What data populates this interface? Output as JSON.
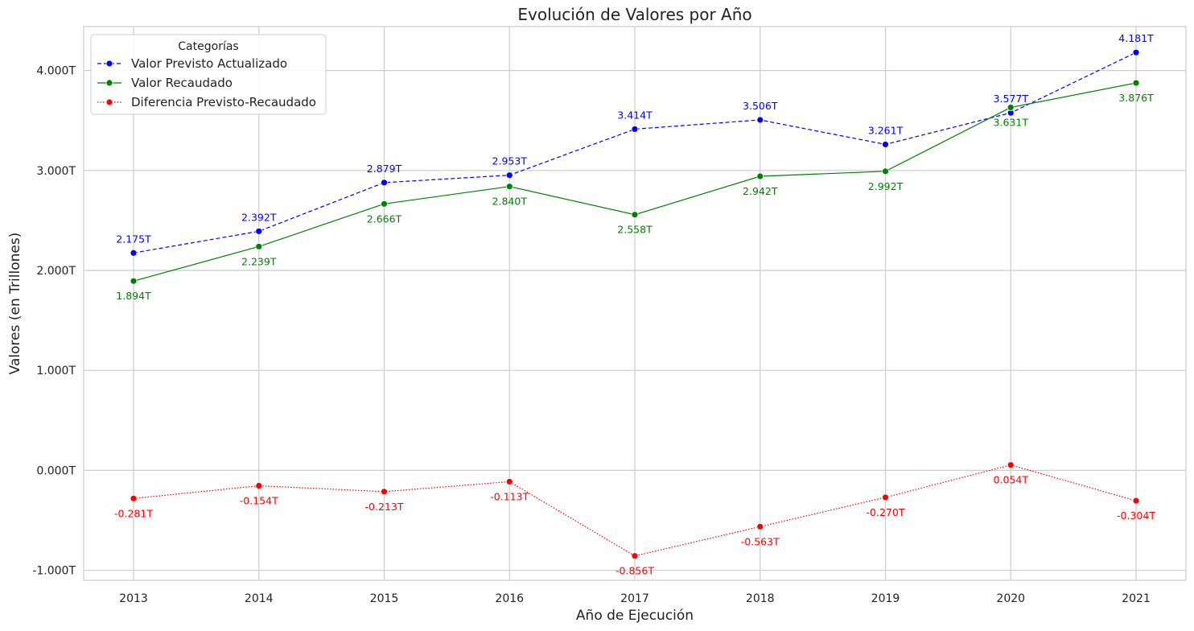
{
  "chart_data": {
    "type": "line",
    "title": "Evolución de Valores por Año",
    "xlabel": "Año de Ejecución",
    "ylabel": "Valores (en Trillones)",
    "categories": [
      "2013",
      "2014",
      "2015",
      "2016",
      "2017",
      "2018",
      "2019",
      "2020",
      "2021"
    ],
    "ylim": [
      -1.1,
      4.44
    ],
    "yticks": [
      -1.0,
      0.0,
      1.0,
      2.0,
      3.0,
      4.0
    ],
    "ytick_labels": [
      "-1.000T",
      "0.000T",
      "1.000T",
      "2.000T",
      "3.000T",
      "4.000T"
    ],
    "grid": true,
    "legend": {
      "title": "Categorías",
      "placement": "top-left"
    },
    "series": [
      {
        "name": "Valor Previsto Actualizado",
        "color": "#0000ff",
        "linestyle": "dashed",
        "values": [
          2.175,
          2.392,
          2.879,
          2.953,
          3.414,
          3.506,
          3.261,
          3.577,
          4.181
        ],
        "labels": [
          "2.175T",
          "2.392T",
          "2.879T",
          "2.953T",
          "3.414T",
          "3.506T",
          "3.261T",
          "3.577T",
          "4.181T"
        ]
      },
      {
        "name": "Valor Recaudado",
        "color": "#008000",
        "linestyle": "solid",
        "values": [
          1.894,
          2.239,
          2.666,
          2.84,
          2.558,
          2.942,
          2.992,
          3.631,
          3.876
        ],
        "labels": [
          "1.894T",
          "2.239T",
          "2.666T",
          "2.840T",
          "2.558T",
          "2.942T",
          "2.992T",
          "3.631T",
          "3.876T"
        ]
      },
      {
        "name": "Diferencia Previsto-Recaudado",
        "color": "#ff0000",
        "linestyle": "dotted",
        "values": [
          -0.281,
          -0.154,
          -0.213,
          -0.113,
          -0.856,
          -0.563,
          -0.27,
          0.054,
          -0.304
        ],
        "labels": [
          "-0.281T",
          "-0.154T",
          "-0.213T",
          "-0.113T",
          "-0.856T",
          "-0.563T",
          "-0.270T",
          "0.054T",
          "-0.304T"
        ]
      }
    ]
  }
}
